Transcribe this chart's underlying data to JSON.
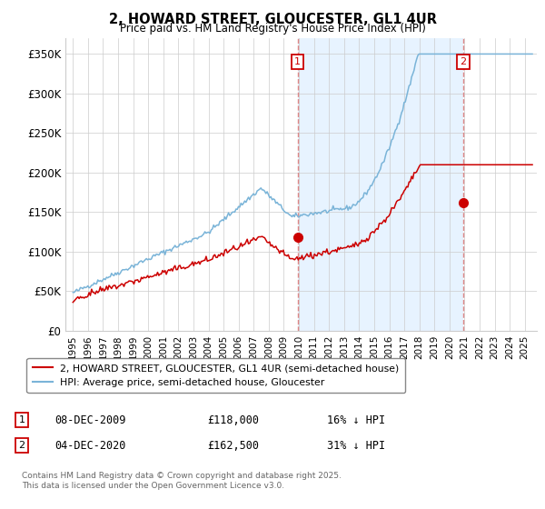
{
  "title": "2, HOWARD STREET, GLOUCESTER, GL1 4UR",
  "subtitle": "Price paid vs. HM Land Registry's House Price Index (HPI)",
  "ylabel_ticks": [
    "£0",
    "£50K",
    "£100K",
    "£150K",
    "£200K",
    "£250K",
    "£300K",
    "£350K"
  ],
  "ytick_values": [
    0,
    50000,
    100000,
    150000,
    200000,
    250000,
    300000,
    350000
  ],
  "ylim": [
    0,
    370000
  ],
  "xlim_start": 1994.5,
  "xlim_end": 2025.8,
  "hpi_color": "#7ab4d8",
  "hpi_fill_color": "#ddeeff",
  "price_color": "#cc0000",
  "dashed_line_color": "#dd8888",
  "background_color": "#ffffff",
  "grid_color": "#cccccc",
  "sale1_x": 2009.92,
  "sale1_y": 118000,
  "sale2_x": 2020.92,
  "sale2_y": 162500,
  "legend_line1": "2, HOWARD STREET, GLOUCESTER, GL1 4UR (semi-detached house)",
  "legend_line2": "HPI: Average price, semi-detached house, Gloucester",
  "annotation1_date": "08-DEC-2009",
  "annotation1_price": "£118,000",
  "annotation1_pct": "16% ↓ HPI",
  "annotation2_date": "04-DEC-2020",
  "annotation2_price": "£162,500",
  "annotation2_pct": "31% ↓ HPI",
  "footer": "Contains HM Land Registry data © Crown copyright and database right 2025.\nThis data is licensed under the Open Government Licence v3.0."
}
